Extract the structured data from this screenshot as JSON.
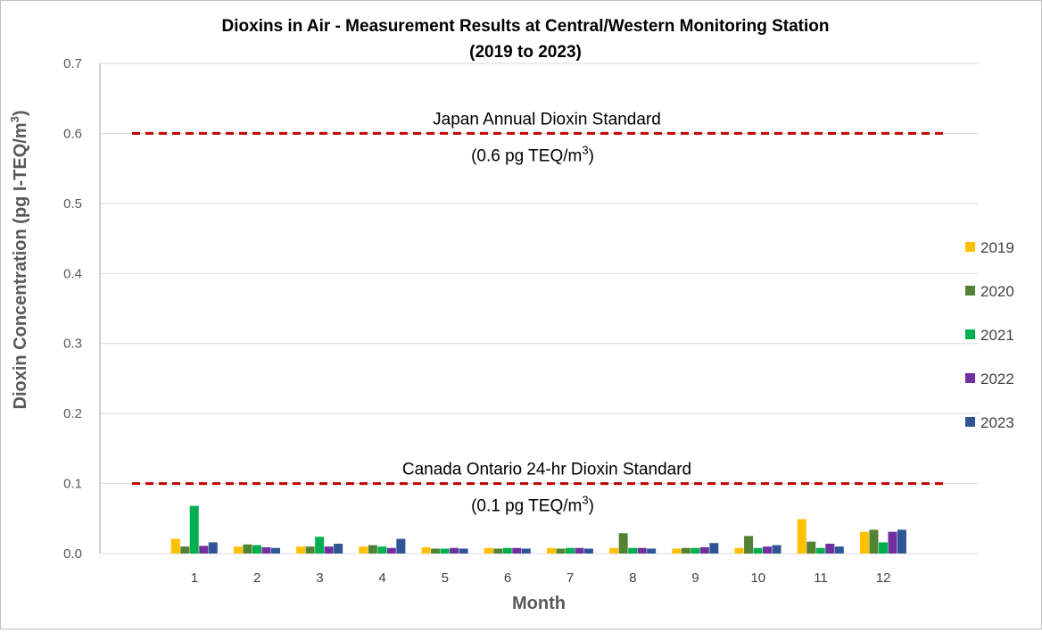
{
  "chart_data": {
    "type": "bar",
    "title_line1": "Dioxins in Air - Measurement Results at Central/Western Monitoring Station",
    "title_line2": "(2019 to 2023)",
    "xlabel": "Month",
    "ylabel": "Dioxin Concentration (pg I-TEQ/m",
    "ylabel_sup": "3",
    "ylabel_end": ")",
    "ylim": [
      0,
      0.7
    ],
    "yticks": [
      "0.0",
      "0.1",
      "0.2",
      "0.3",
      "0.4",
      "0.5",
      "0.6",
      "0.7"
    ],
    "grid": true,
    "legend_position": "right",
    "categories": [
      "1",
      "2",
      "3",
      "4",
      "5",
      "6",
      "7",
      "8",
      "9",
      "10",
      "11",
      "12"
    ],
    "series": [
      {
        "name": "2019",
        "color": "#ffc000",
        "values": [
          0.021,
          0.01,
          0.01,
          0.01,
          0.009,
          0.008,
          0.008,
          0.008,
          0.007,
          0.008,
          0.049,
          0.031
        ]
      },
      {
        "name": "2020",
        "color": "#548235",
        "values": [
          0.01,
          0.013,
          0.01,
          0.012,
          0.007,
          0.007,
          0.007,
          0.029,
          0.008,
          0.025,
          0.017,
          0.034
        ]
      },
      {
        "name": "2021",
        "color": "#00b050",
        "values": [
          0.068,
          0.012,
          0.024,
          0.01,
          0.007,
          0.008,
          0.008,
          0.008,
          0.008,
          0.008,
          0.008,
          0.016
        ]
      },
      {
        "name": "2022",
        "color": "#7030a0",
        "values": [
          0.011,
          0.009,
          0.01,
          0.008,
          0.008,
          0.008,
          0.008,
          0.008,
          0.009,
          0.01,
          0.014,
          0.031
        ]
      },
      {
        "name": "2023",
        "color": "#2f5597",
        "values": [
          0.016,
          0.008,
          0.014,
          0.021,
          0.007,
          0.007,
          0.007,
          0.007,
          0.015,
          0.012,
          0.01,
          0.034
        ]
      }
    ],
    "reference_lines": [
      {
        "value": 0.6,
        "color": "#c00000",
        "label": "Japan Annual Dioxin Standard",
        "sublabel": "(0.6 pg TEQ/m",
        "sublabel_sup": "3",
        "sublabel_end": ")"
      },
      {
        "value": 0.1,
        "color": "#c00000",
        "label": "Canada Ontario 24-hr Dioxin Standard",
        "sublabel": "(0.1 pg TEQ/m",
        "sublabel_sup": "3",
        "sublabel_end": ")"
      }
    ]
  }
}
